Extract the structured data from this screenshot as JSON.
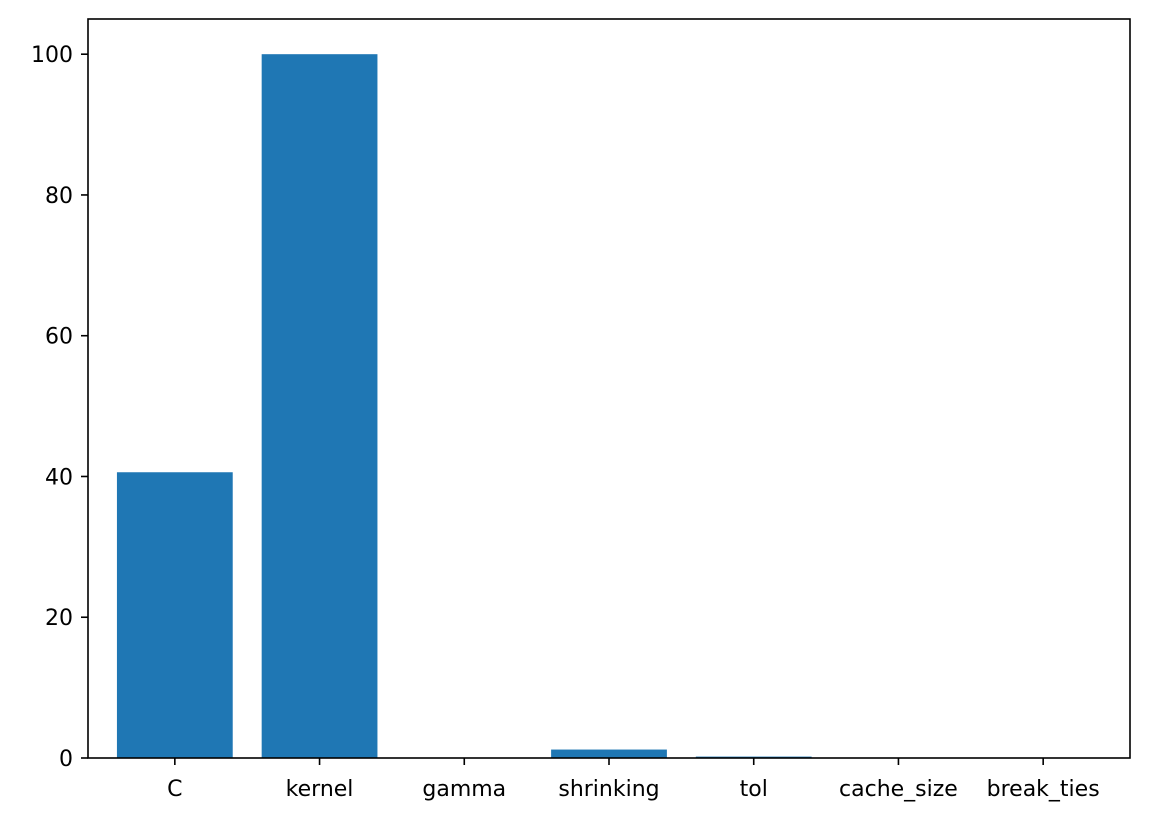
{
  "chart_data": {
    "type": "bar",
    "categories": [
      "C",
      "kernel",
      "gamma",
      "shrinking",
      "tol",
      "cache_size",
      "break_ties"
    ],
    "values": [
      40.6,
      100.0,
      0.05,
      1.2,
      0.2,
      0.02,
      0.02
    ],
    "title": "",
    "xlabel": "",
    "ylabel": "",
    "ylim": [
      0,
      105
    ],
    "yticks": [
      0,
      20,
      40,
      60,
      80,
      100
    ],
    "grid": false,
    "bar_color": "#1f77b4",
    "axis_color": "#000000"
  }
}
